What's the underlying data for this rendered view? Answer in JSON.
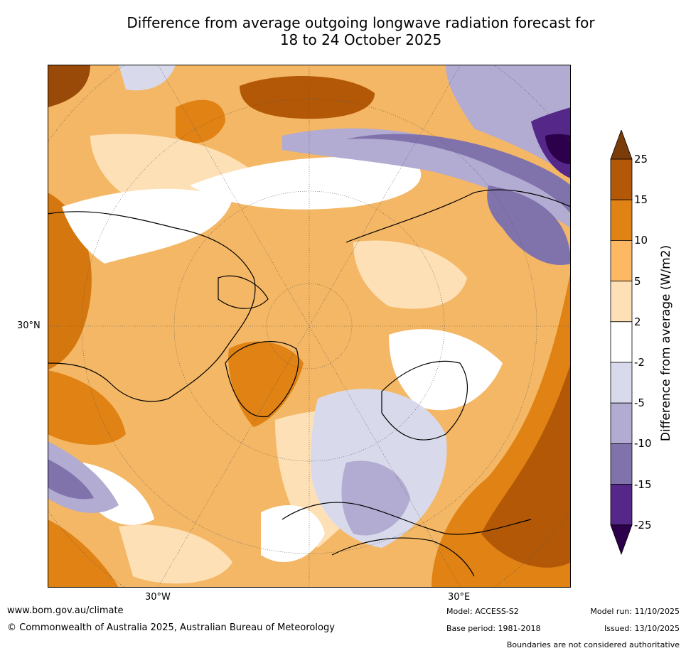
{
  "title_line1": "Difference from average outgoing longwave radiation forecast for",
  "title_line2": "18 to 24 October 2025",
  "map": {
    "label_lat_left": "30°N",
    "label_lon_left": "30°W",
    "label_lon_right": "30°E"
  },
  "colorbar": {
    "title": "Difference from average (W/m2)",
    "ticks": [
      "25",
      "15",
      "10",
      "5",
      "2",
      "-2",
      "-5",
      "-10",
      "-15",
      "-25"
    ],
    "colors": [
      "#7a3d0a",
      "#b35806",
      "#e08214",
      "#fdb863",
      "#fee0b6",
      "#ffffff",
      "#d8daeb",
      "#b2abd2",
      "#8073ac",
      "#542788",
      "#2d004b"
    ]
  },
  "footer": {
    "website": "www.bom.gov.au/climate",
    "copyright": "© Commonwealth of Australia 2025, Australian Bureau of Meteorology",
    "model": "Model: ACCESS-S2",
    "base_period": "Base period: 1981-2018",
    "model_run": "Model run: 11/10/2025",
    "issued": "Issued: 13/10/2025",
    "disclaimer": "Boundaries are not considered authoritative"
  }
}
